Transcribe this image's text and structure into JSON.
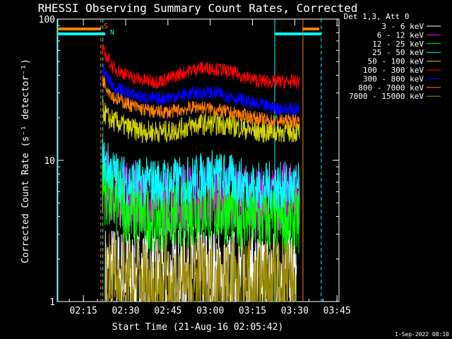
{
  "chart_data": {
    "type": "line",
    "title": "RHESSI Observing Summary Count Rates, Corrected",
    "xlabel": "Start Time (21-Aug-16 02:05:42)",
    "ylabel": "Corrected Count Rate (s⁻¹ detector⁻¹)",
    "y_scale": "log",
    "ylim": [
      1,
      100
    ],
    "xlim_minutes": [
      0,
      100
    ],
    "x_ticks": [
      "02:15",
      "02:30",
      "02:45",
      "03:00",
      "03:15",
      "03:30",
      "03:45"
    ],
    "x_tick_minutes": [
      9.3,
      24.3,
      39.3,
      54.3,
      69.3,
      84.3,
      99.3
    ],
    "y_ticks": [
      "1",
      "10",
      "100"
    ],
    "y_tick_values": [
      1,
      10,
      100
    ],
    "legend_header": "Det 1,3, Att 0",
    "legend_position": "right",
    "grid": false,
    "flags": [
      {
        "label": "S",
        "color": "#ff7f00"
      },
      {
        "label": "N",
        "color": "#00ffff"
      }
    ],
    "series": [
      {
        "name": "3 - 6 keV",
        "color": "#ffffff",
        "x": [
          17,
          20,
          25,
          30,
          35,
          40,
          45,
          50,
          55,
          60,
          65,
          70,
          75,
          80,
          85
        ],
        "values": [
          1.6,
          1.6,
          1.5,
          1.5,
          1.5,
          1.5,
          1.6,
          1.6,
          1.6,
          1.5,
          1.5,
          1.5,
          1.5,
          1.5,
          1.5
        ]
      },
      {
        "name": "6 - 12 keV",
        "color": "#ff00ff",
        "x": [
          16,
          20,
          25,
          30,
          35,
          40,
          45,
          50,
          55,
          60,
          65,
          70,
          75,
          80,
          86
        ],
        "values": [
          7.0,
          6.0,
          5.5,
          5.5,
          5.0,
          5.0,
          5.5,
          5.5,
          6.0,
          5.5,
          5.5,
          5.0,
          5.0,
          5.5,
          5.5
        ]
      },
      {
        "name": "12 - 25 keV",
        "color": "#00ff00",
        "x": [
          16,
          20,
          25,
          30,
          35,
          40,
          45,
          50,
          55,
          60,
          65,
          70,
          75,
          80,
          86
        ],
        "values": [
          6.5,
          5.0,
          4.5,
          4.0,
          4.0,
          4.0,
          4.0,
          4.5,
          4.5,
          4.5,
          4.0,
          3.8,
          3.8,
          3.8,
          3.8
        ]
      },
      {
        "name": "25 - 50 keV",
        "color": "#00ffff",
        "x": [
          16,
          18,
          20,
          25,
          30,
          35,
          40,
          45,
          50,
          55,
          60,
          65,
          70,
          75,
          80,
          86
        ],
        "values": [
          10.0,
          9.0,
          8.0,
          7.0,
          7.0,
          7.0,
          7.0,
          7.0,
          7.5,
          8.0,
          7.5,
          7.0,
          6.5,
          6.5,
          6.5,
          6.5
        ]
      },
      {
        "name": "50 - 100 keV",
        "color": "#d4d400",
        "x": [
          16,
          18,
          20,
          25,
          30,
          35,
          40,
          45,
          50,
          55,
          60,
          65,
          70,
          75,
          80,
          86
        ],
        "values": [
          23,
          20,
          19,
          17,
          16,
          16,
          16,
          17,
          18,
          18,
          18,
          17,
          16,
          16,
          16,
          16
        ]
      },
      {
        "name": "100 - 300 keV",
        "color": "#ff0000",
        "x": [
          16,
          18,
          20,
          25,
          30,
          35,
          40,
          45,
          50,
          55,
          60,
          65,
          70,
          75,
          80,
          86
        ],
        "values": [
          60,
          52,
          45,
          40,
          37,
          36,
          38,
          42,
          45,
          45,
          43,
          40,
          37,
          36,
          36,
          36
        ]
      },
      {
        "name": "300 - 800 keV",
        "color": "#0000ff",
        "x": [
          16,
          18,
          20,
          25,
          30,
          35,
          40,
          45,
          50,
          55,
          60,
          65,
          70,
          75,
          80,
          86
        ],
        "values": [
          45,
          38,
          33,
          30,
          28,
          27,
          28,
          29,
          30,
          30,
          29,
          27,
          25,
          24,
          23,
          23
        ]
      },
      {
        "name": "800 - 7000 keV",
        "color": "#ff7f00",
        "x": [
          16,
          18,
          20,
          25,
          30,
          35,
          40,
          45,
          50,
          55,
          60,
          65,
          70,
          75,
          80,
          86
        ],
        "values": [
          38,
          32,
          28,
          25,
          23,
          22,
          22,
          23,
          24,
          23,
          22,
          21,
          20,
          19,
          19,
          19
        ]
      },
      {
        "name": "7000 - 15000 keV",
        "color": "#9a8a00",
        "x": [
          17,
          20,
          25,
          30,
          35,
          40,
          45,
          50,
          55,
          60,
          65,
          70,
          75,
          80,
          85
        ],
        "values": [
          1.4,
          1.4,
          1.3,
          1.3,
          1.3,
          1.3,
          1.3,
          1.3,
          1.3,
          1.3,
          1.3,
          1.3,
          1.3,
          1.3,
          1.3
        ]
      }
    ]
  },
  "footer": {
    "date": "1-Sep-2022 08:10"
  }
}
